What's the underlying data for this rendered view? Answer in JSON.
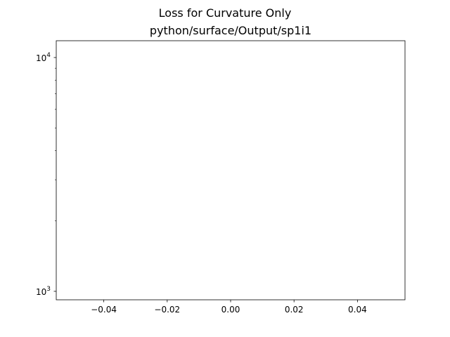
{
  "chart_data": {
    "type": "line",
    "title": "Loss for Curvature Only",
    "subtitle": "python/surface/Output/sp1i1",
    "xlabel": "",
    "ylabel": "",
    "xscale": "linear",
    "yscale": "log",
    "xlim": [
      -0.055,
      0.055
    ],
    "ylim": [
      920,
      11800
    ],
    "x_ticks": [
      {
        "value": -0.04,
        "label": "−0.04"
      },
      {
        "value": -0.02,
        "label": "−0.02"
      },
      {
        "value": 0.0,
        "label": "0.00"
      },
      {
        "value": 0.02,
        "label": "0.02"
      },
      {
        "value": 0.04,
        "label": "0.04"
      }
    ],
    "y_major_ticks": [
      {
        "value": 1000,
        "base": "10",
        "exp": "3"
      },
      {
        "value": 10000,
        "base": "10",
        "exp": "4"
      }
    ],
    "y_minor_ticks": [
      2000,
      3000,
      4000,
      5000,
      6000,
      7000,
      8000,
      9000
    ],
    "grid": false,
    "legend": "none",
    "series": []
  }
}
